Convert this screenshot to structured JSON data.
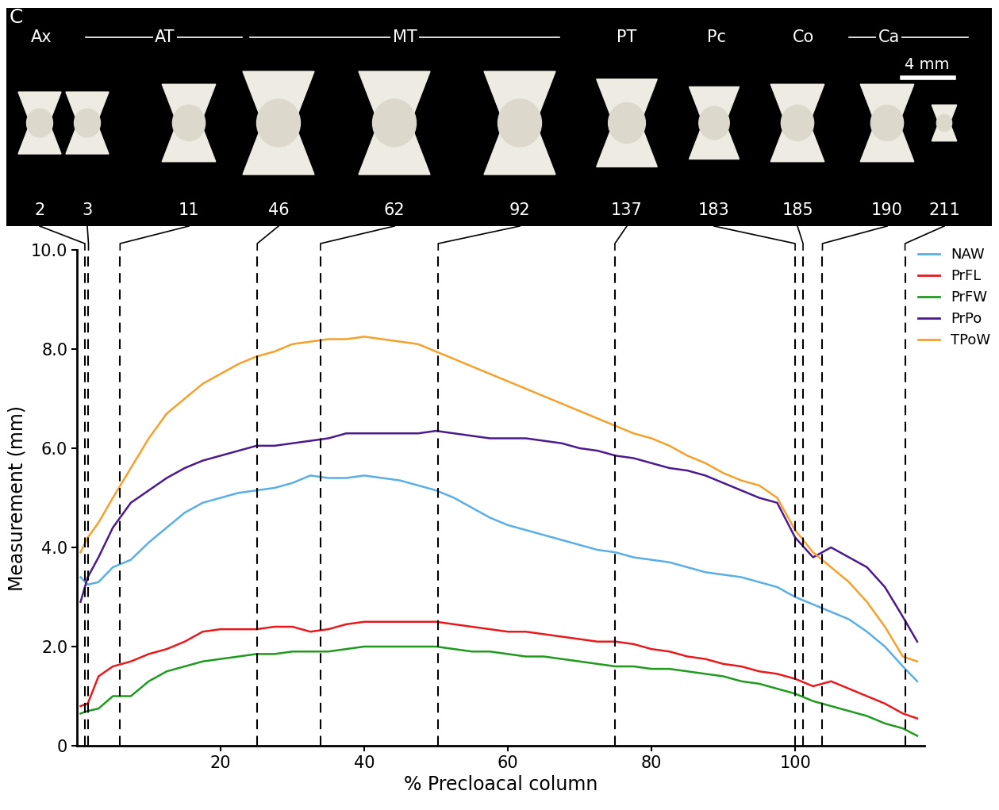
{
  "chart_data": {
    "type": "line",
    "panel_label": "C",
    "xlabel": "% Precloacal column",
    "ylabel": "Measurement (mm)",
    "xlim": [
      0,
      118
    ],
    "xticks": [
      20,
      40,
      60,
      80,
      100
    ],
    "ylim": [
      0,
      10.0
    ],
    "yticks": [
      {
        "value": 0,
        "label": "0"
      },
      {
        "value": 2.0,
        "label": "2.0"
      },
      {
        "value": 4.0,
        "label": "4.0"
      },
      {
        "value": 6.0,
        "label": "6.0"
      },
      {
        "value": 8.0,
        "label": "8.0"
      },
      {
        "value": 10.0,
        "label": "10.0"
      }
    ],
    "legend": "upper right",
    "regions": [
      "Ax",
      "AT",
      "MT",
      "PT",
      "Pc",
      "Co",
      "Ca"
    ],
    "scale_bar": "4 mm",
    "vertebrae": [
      {
        "number": 2,
        "x": 1.1
      },
      {
        "number": 3,
        "x": 1.6
      },
      {
        "number": 11,
        "x": 6.0
      },
      {
        "number": 46,
        "x": 25.1
      },
      {
        "number": 62,
        "x": 33.9
      },
      {
        "number": 92,
        "x": 50.3
      },
      {
        "number": 137,
        "x": 74.9
      },
      {
        "number": 183,
        "x": 100.0
      },
      {
        "number": 185,
        "x": 101.1
      },
      {
        "number": 190,
        "x": 103.8
      },
      {
        "number": 211,
        "x": 115.3
      }
    ],
    "x": [
      0.5,
      1.5,
      3,
      5,
      7.5,
      10,
      12.5,
      15,
      17.5,
      20,
      22.5,
      25,
      27.5,
      30,
      32.5,
      35,
      37.5,
      40,
      42.5,
      45,
      47.5,
      50,
      52.5,
      55,
      57.5,
      60,
      62.5,
      65,
      67.5,
      70,
      72.5,
      75,
      77.5,
      80,
      82.5,
      85,
      87.5,
      90,
      92.5,
      95,
      97.5,
      100,
      102.5,
      105,
      107.5,
      110,
      112.5,
      115,
      117
    ],
    "series": [
      {
        "name": "NAW",
        "color": "#5aaee6",
        "values": [
          3.4,
          3.25,
          3.3,
          3.6,
          3.75,
          4.1,
          4.4,
          4.7,
          4.9,
          5.0,
          5.1,
          5.15,
          5.2,
          5.3,
          5.45,
          5.4,
          5.4,
          5.45,
          5.4,
          5.35,
          5.25,
          5.15,
          5.0,
          4.8,
          4.6,
          4.45,
          4.35,
          4.25,
          4.15,
          4.05,
          3.95,
          3.9,
          3.8,
          3.75,
          3.7,
          3.6,
          3.5,
          3.45,
          3.4,
          3.3,
          3.2,
          3.0,
          2.85,
          2.7,
          2.55,
          2.3,
          2.0,
          1.6,
          1.3
        ]
      },
      {
        "name": "PrFL",
        "color": "#e8191c",
        "values": [
          0.8,
          0.85,
          1.4,
          1.6,
          1.7,
          1.85,
          1.95,
          2.1,
          2.3,
          2.35,
          2.35,
          2.35,
          2.4,
          2.4,
          2.3,
          2.35,
          2.45,
          2.5,
          2.5,
          2.5,
          2.5,
          2.5,
          2.45,
          2.4,
          2.35,
          2.3,
          2.3,
          2.25,
          2.2,
          2.15,
          2.1,
          2.1,
          2.05,
          1.95,
          1.9,
          1.8,
          1.75,
          1.65,
          1.6,
          1.5,
          1.45,
          1.35,
          1.2,
          1.3,
          1.15,
          1.0,
          0.85,
          0.65,
          0.55
        ]
      },
      {
        "name": "PrFW",
        "color": "#1f9a1f",
        "values": [
          0.65,
          0.7,
          0.75,
          1.0,
          1.0,
          1.3,
          1.5,
          1.6,
          1.7,
          1.75,
          1.8,
          1.85,
          1.85,
          1.9,
          1.9,
          1.9,
          1.95,
          2.0,
          2.0,
          2.0,
          2.0,
          2.0,
          1.95,
          1.9,
          1.9,
          1.85,
          1.8,
          1.8,
          1.75,
          1.7,
          1.65,
          1.6,
          1.6,
          1.55,
          1.55,
          1.5,
          1.45,
          1.4,
          1.3,
          1.25,
          1.15,
          1.05,
          0.9,
          0.8,
          0.7,
          0.6,
          0.45,
          0.35,
          0.2
        ]
      },
      {
        "name": "PrPo",
        "color": "#4b1a8c",
        "values": [
          2.9,
          3.4,
          3.8,
          4.4,
          4.9,
          5.15,
          5.4,
          5.6,
          5.75,
          5.85,
          5.95,
          6.05,
          6.05,
          6.1,
          6.15,
          6.2,
          6.3,
          6.3,
          6.3,
          6.3,
          6.3,
          6.35,
          6.3,
          6.25,
          6.2,
          6.2,
          6.2,
          6.15,
          6.1,
          6.0,
          5.95,
          5.85,
          5.8,
          5.7,
          5.6,
          5.55,
          5.45,
          5.3,
          5.15,
          5.0,
          4.9,
          4.2,
          3.8,
          4.0,
          3.8,
          3.6,
          3.2,
          2.6,
          2.1
        ]
      },
      {
        "name": "TPoW",
        "color": "#f5a02a",
        "values": [
          3.9,
          4.2,
          4.5,
          5.0,
          5.6,
          6.2,
          6.7,
          7.0,
          7.3,
          7.5,
          7.7,
          7.85,
          7.95,
          8.1,
          8.15,
          8.2,
          8.2,
          8.25,
          8.2,
          8.15,
          8.1,
          7.95,
          7.8,
          7.65,
          7.5,
          7.35,
          7.2,
          7.05,
          6.9,
          6.75,
          6.6,
          6.45,
          6.3,
          6.2,
          6.05,
          5.85,
          5.7,
          5.5,
          5.35,
          5.25,
          5.0,
          4.35,
          3.9,
          3.6,
          3.3,
          2.9,
          2.4,
          1.8,
          1.7
        ]
      }
    ]
  }
}
